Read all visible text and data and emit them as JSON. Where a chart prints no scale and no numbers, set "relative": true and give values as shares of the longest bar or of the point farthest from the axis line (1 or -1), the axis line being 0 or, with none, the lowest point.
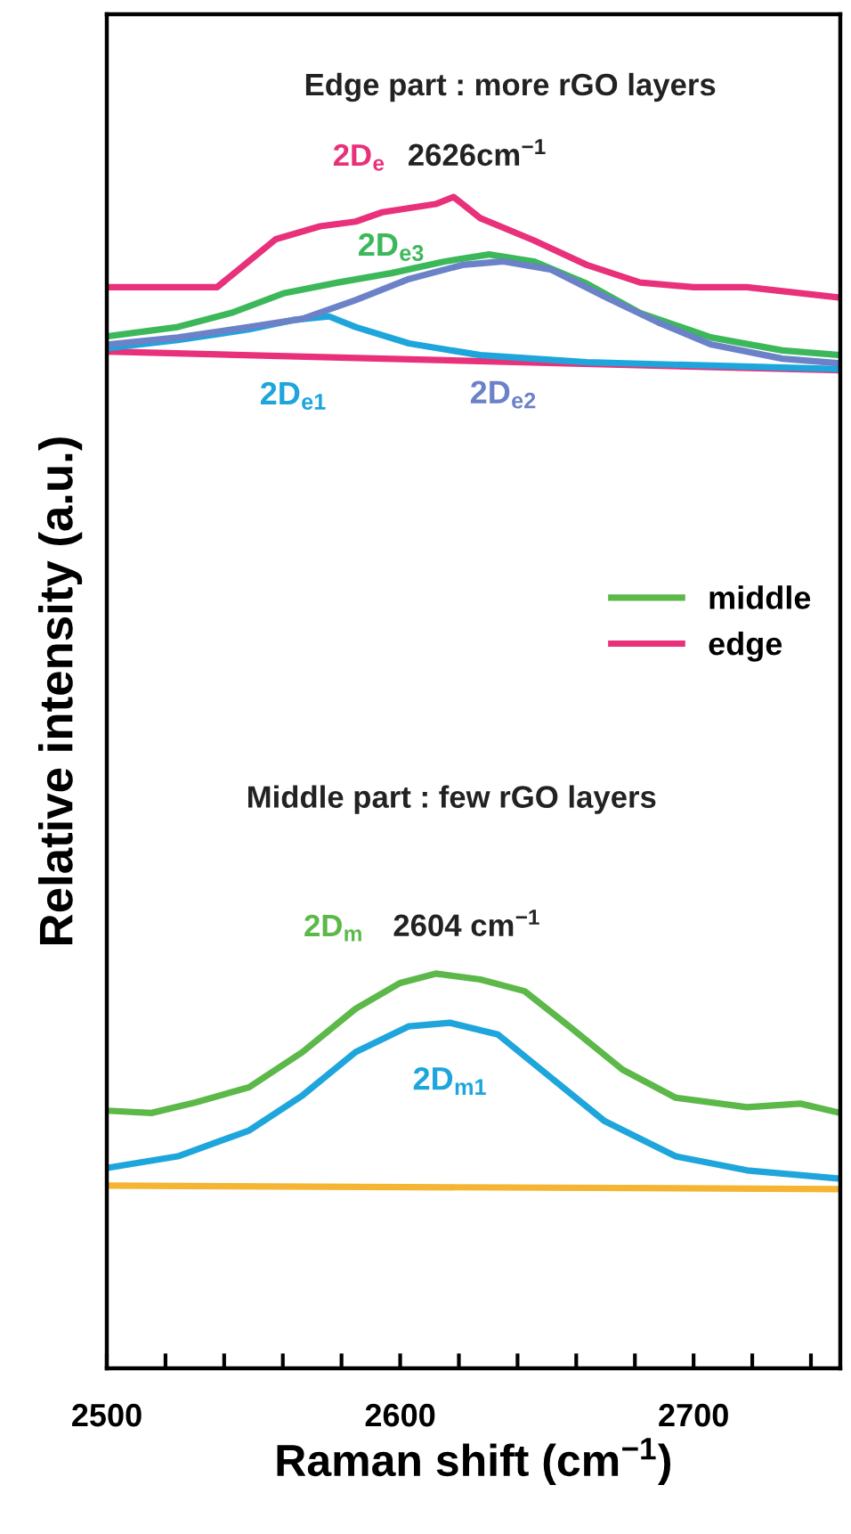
{
  "chart_data": {
    "type": "line",
    "relative": true,
    "xlabel": "Raman shift (cm$^{−1}$)",
    "ylabel": "Relative intensity (a.u.)",
    "xlim": [
      2500,
      2750
    ],
    "xticks": [
      2500,
      {
        "value": 2520,
        "label": null
      },
      {
        "value": 2540,
        "label": null
      },
      {
        "value": 2560,
        "label": null
      },
      {
        "value": 2580,
        "label": null
      },
      2600,
      {
        "value": 2620,
        "label": null
      },
      {
        "value": 2640,
        "label": null
      },
      {
        "value": 2660,
        "label": null
      },
      {
        "value": 2680,
        "label": null
      },
      2700,
      {
        "value": 2720,
        "label": null
      },
      {
        "value": 2740,
        "label": null
      }
    ],
    "legend": "right",
    "grid": false,
    "marker": "none",
    "line_style": "solid",
    "annotations": [
      "Edge part : more rGO layers",
      "2626cm$^{−1}$",
      "Middle part : few rGO layers",
      "2604 cm$^{−1}$",
      "2D$_{e}$",
      "2D$_{m}$"
    ],
    "series": [
      {
        "name": "middle",
        "color": "#5db84a",
        "x": [
          2500,
          2515.2,
          2530.3,
          2548.5,
          2566.7,
          2584.8,
          2600,
          2612.1,
          2627.3,
          2642.4,
          2657.6,
          2675.8,
          2693.9,
          2718.2,
          2736.4,
          2750
        ],
        "values": [
          0.22,
          0.218,
          0.227,
          0.24,
          0.27,
          0.307,
          0.329,
          0.337,
          0.332,
          0.322,
          0.292,
          0.255,
          0.231,
          0.223,
          0.226,
          0.218
        ]
      },
      {
        "name": "edge",
        "color": "#e8317a",
        "x": [
          2500,
          2537.6,
          2557.6,
          2572.7,
          2584.8,
          2593.9,
          2612.1,
          2618.2,
          2627.3,
          2645.5,
          2663.6,
          2681.8,
          2700,
          2718.2,
          2750
        ],
        "values": [
          0.923,
          0.923,
          0.964,
          0.975,
          0.979,
          0.987,
          0.994,
          1.0,
          0.982,
          0.963,
          0.942,
          0.927,
          0.923,
          0.923,
          0.914
        ]
      },
      {
        "color": "#e8317a",
        "x": [
          2500,
          2750
        ],
        "values": [
          0.868,
          0.852
        ]
      },
      {
        "name": "2D$_{e3}$",
        "color": "#3cb85a",
        "x": [
          2500,
          2524.2,
          2542.4,
          2560.6,
          2578.8,
          2597,
          2615.2,
          2630.3,
          2645.5,
          2663.6,
          2681.8,
          2706.1,
          2730.3,
          2750
        ],
        "values": [
          0.881,
          0.889,
          0.901,
          0.918,
          0.927,
          0.935,
          0.945,
          0.951,
          0.945,
          0.926,
          0.901,
          0.88,
          0.869,
          0.865
        ]
      },
      {
        "name": "2D$_{e1}$",
        "color": "#1ea6dc",
        "x": [
          2500,
          2524.2,
          2548.5,
          2563.6,
          2575.8,
          2584.8,
          2603,
          2627.3,
          2663.6,
          2706.1,
          2750
        ],
        "values": [
          0.871,
          0.878,
          0.887,
          0.895,
          0.898,
          0.889,
          0.875,
          0.865,
          0.859,
          0.856,
          0.853
        ]
      },
      {
        "name": "2D$_{e2}$",
        "color": "#6b82c8",
        "x": [
          2500,
          2524.2,
          2548.5,
          2566.7,
          2584.8,
          2603,
          2621.2,
          2635.2,
          2651.5,
          2669.7,
          2687.9,
          2706.1,
          2730.3,
          2750
        ],
        "values": [
          0.874,
          0.88,
          0.889,
          0.896,
          0.912,
          0.93,
          0.942,
          0.945,
          0.938,
          0.915,
          0.893,
          0.874,
          0.862,
          0.858
        ]
      },
      {
        "name": "2D$_{m1}$",
        "color": "#1ea6dc",
        "x": [
          2500,
          2524.2,
          2548.5,
          2566.7,
          2584.8,
          2603,
          2617,
          2633.3,
          2651.5,
          2669.7,
          2693.9,
          2718.2,
          2750
        ],
        "values": [
          0.171,
          0.181,
          0.203,
          0.233,
          0.27,
          0.292,
          0.295,
          0.285,
          0.248,
          0.211,
          0.181,
          0.169,
          0.162
        ]
      },
      {
        "color": "#f5b432",
        "x": [
          2500,
          2750
        ],
        "values": [
          0.156,
          0.153
        ]
      }
    ]
  }
}
